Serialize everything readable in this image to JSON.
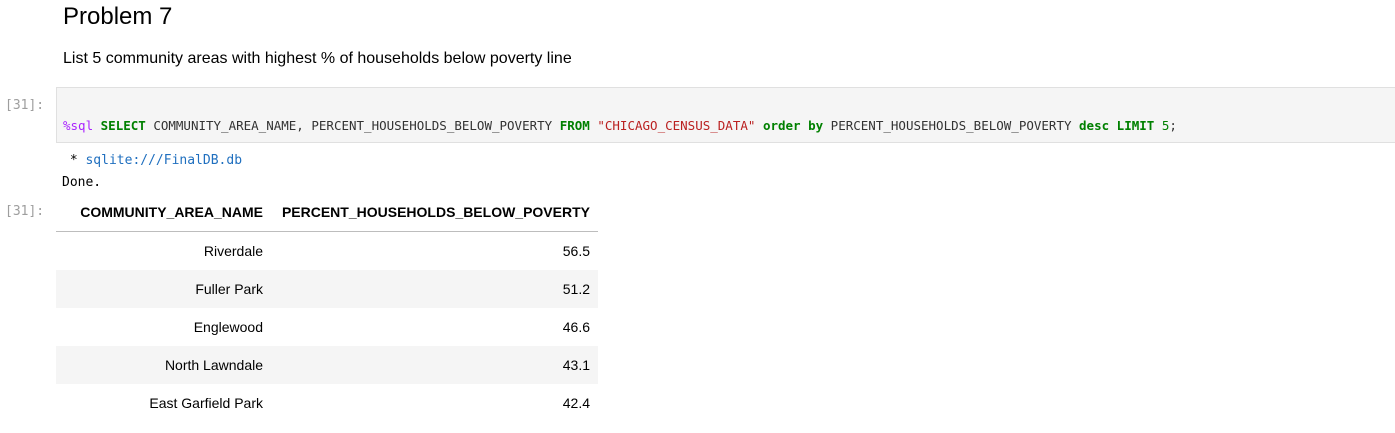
{
  "markdown": {
    "heading": "Problem 7",
    "description": "List 5 community areas with highest % of households below poverty line"
  },
  "input_cell": {
    "prompt": "[31]:",
    "code": {
      "magic": "%sql",
      "select_kw": "SELECT",
      "columns": " COMMUNITY_AREA_NAME, PERCENT_HOUSEHOLDS_BELOW_POVERTY ",
      "from_kw": "FROM",
      "table_name": "\"CHICAGO_CENSUS_DATA\"",
      "order_kw": "order by",
      "order_col": " PERCENT_HOUSEHOLDS_BELOW_POVERTY ",
      "desc_kw": "desc",
      "limit_kw": "LIMIT",
      "limit_val": "5",
      "terminator": ";"
    }
  },
  "output": {
    "prompt": "[31]:",
    "stream_prefix": " * ",
    "connection": "sqlite:///FinalDB.db",
    "status": "Done.",
    "table": {
      "columns": [
        "COMMUNITY_AREA_NAME",
        "PERCENT_HOUSEHOLDS_BELOW_POVERTY"
      ],
      "rows": [
        [
          "Riverdale",
          "56.5"
        ],
        [
          "Fuller Park",
          "51.2"
        ],
        [
          "Englewood",
          "46.6"
        ],
        [
          "North Lawndale",
          "43.1"
        ],
        [
          "East Garfield Park",
          "42.4"
        ]
      ]
    }
  },
  "colors": {
    "prompt": "#9e9e9e",
    "code_bg": "#f5f5f5",
    "keyword": "#008000",
    "string": "#ba2121",
    "magic": "#aa22ff",
    "link": "#1f6fbf"
  }
}
